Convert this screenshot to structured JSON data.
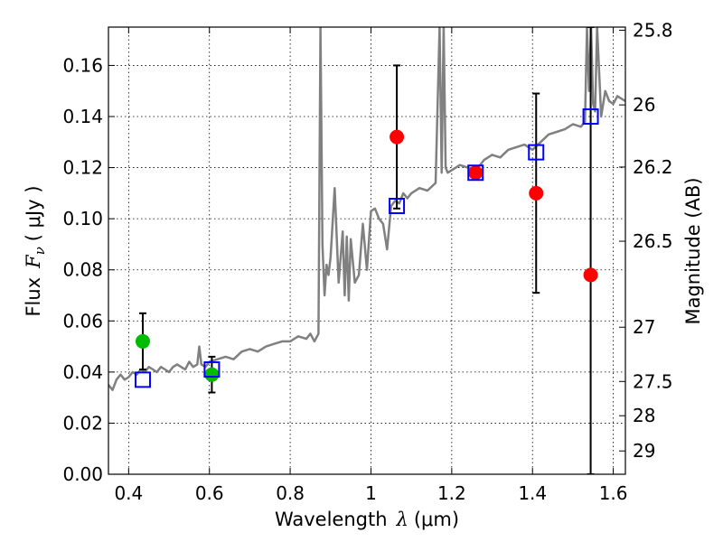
{
  "chart_data": {
    "type": "scatter",
    "title": "",
    "xlabel": {
      "prefix": "Wavelength",
      "symbol": "λ",
      "unit": "(μm)"
    },
    "ylabel": {
      "prefix": "Flux",
      "symbol": "F",
      "subscript": "ν",
      "unit": "( μJy )"
    },
    "y2label": "Magnitude (AB)",
    "xlim": [
      0.35,
      1.63
    ],
    "ylim": [
      0.0,
      0.175
    ],
    "grid": true,
    "x_ticks": [
      {
        "v": 0.4,
        "label": "0.4"
      },
      {
        "v": 0.6,
        "label": "0.6"
      },
      {
        "v": 0.8,
        "label": "0.8"
      },
      {
        "v": 1.0,
        "label": "1"
      },
      {
        "v": 1.2,
        "label": "1.2"
      },
      {
        "v": 1.4,
        "label": "1.4"
      },
      {
        "v": 1.6,
        "label": "1.6"
      }
    ],
    "y_ticks": [
      {
        "v": 0.0,
        "label": "0.00"
      },
      {
        "v": 0.02,
        "label": "0.02"
      },
      {
        "v": 0.04,
        "label": "0.04"
      },
      {
        "v": 0.06,
        "label": "0.06"
      },
      {
        "v": 0.08,
        "label": "0.08"
      },
      {
        "v": 0.1,
        "label": "0.10"
      },
      {
        "v": 0.12,
        "label": "0.12"
      },
      {
        "v": 0.14,
        "label": "0.14"
      },
      {
        "v": 0.16,
        "label": "0.16"
      }
    ],
    "mag_ticks": [
      {
        "mag": 25.8,
        "label": "25.8"
      },
      {
        "mag": 26,
        "label": "26"
      },
      {
        "mag": 26.2,
        "label": "26.2"
      },
      {
        "mag": 26.5,
        "label": "26.5"
      },
      {
        "mag": 27,
        "label": "27"
      },
      {
        "mag": 27.5,
        "label": "27.5"
      },
      {
        "mag": 28,
        "label": "28"
      },
      {
        "mag": 29,
        "label": "29"
      }
    ],
    "sed_model": {
      "color": "#808080",
      "x": [
        0.35,
        0.36,
        0.37,
        0.38,
        0.39,
        0.4,
        0.41,
        0.42,
        0.43,
        0.44,
        0.45,
        0.46,
        0.47,
        0.48,
        0.49,
        0.5,
        0.51,
        0.52,
        0.53,
        0.54,
        0.55,
        0.56,
        0.57,
        0.575,
        0.58,
        0.59,
        0.6,
        0.62,
        0.64,
        0.66,
        0.68,
        0.7,
        0.72,
        0.74,
        0.76,
        0.78,
        0.8,
        0.82,
        0.84,
        0.85,
        0.86,
        0.87,
        0.875,
        0.88,
        0.885,
        0.89,
        0.895,
        0.9,
        0.91,
        0.92,
        0.93,
        0.935,
        0.94,
        0.945,
        0.95,
        0.96,
        0.97,
        0.98,
        0.99,
        1.0,
        1.01,
        1.02,
        1.03,
        1.04,
        1.05,
        1.06,
        1.07,
        1.08,
        1.09,
        1.1,
        1.12,
        1.14,
        1.16,
        1.17,
        1.175,
        1.18,
        1.185,
        1.19,
        1.2,
        1.22,
        1.24,
        1.26,
        1.28,
        1.3,
        1.32,
        1.34,
        1.36,
        1.38,
        1.4,
        1.42,
        1.44,
        1.46,
        1.48,
        1.5,
        1.52,
        1.53,
        1.535,
        1.54,
        1.545,
        1.55,
        1.555,
        1.56,
        1.57,
        1.58,
        1.59,
        1.6,
        1.61,
        1.62,
        1.63
      ],
      "y": [
        0.035,
        0.033,
        0.037,
        0.039,
        0.037,
        0.038,
        0.04,
        0.039,
        0.041,
        0.04,
        0.042,
        0.041,
        0.04,
        0.042,
        0.041,
        0.04,
        0.042,
        0.043,
        0.042,
        0.041,
        0.044,
        0.042,
        0.043,
        0.05,
        0.043,
        0.042,
        0.044,
        0.045,
        0.046,
        0.045,
        0.048,
        0.049,
        0.048,
        0.05,
        0.051,
        0.052,
        0.052,
        0.054,
        0.053,
        0.055,
        0.052,
        0.055,
        0.175,
        0.09,
        0.07,
        0.082,
        0.078,
        0.085,
        0.112,
        0.075,
        0.095,
        0.07,
        0.093,
        0.068,
        0.092,
        0.075,
        0.078,
        0.098,
        0.08,
        0.103,
        0.104,
        0.1,
        0.098,
        0.088,
        0.105,
        0.107,
        0.106,
        0.11,
        0.108,
        0.11,
        0.112,
        0.111,
        0.114,
        0.175,
        0.118,
        0.175,
        0.12,
        0.118,
        0.119,
        0.121,
        0.12,
        0.119,
        0.123,
        0.125,
        0.124,
        0.127,
        0.128,
        0.129,
        0.127,
        0.13,
        0.133,
        0.134,
        0.135,
        0.137,
        0.136,
        0.138,
        0.175,
        0.15,
        0.175,
        0.145,
        0.142,
        0.175,
        0.14,
        0.15,
        0.146,
        0.145,
        0.148,
        0.147,
        0.146
      ]
    },
    "model_photometry": {
      "color": "#0000ff",
      "marker": "open-square",
      "points": [
        {
          "x": 0.435,
          "y": 0.037
        },
        {
          "x": 0.606,
          "y": 0.041
        },
        {
          "x": 1.064,
          "y": 0.105
        },
        {
          "x": 1.259,
          "y": 0.118
        },
        {
          "x": 1.409,
          "y": 0.126
        },
        {
          "x": 1.544,
          "y": 0.14
        }
      ]
    },
    "observed_optical": {
      "color": "#00bb00",
      "marker": "filled-circle",
      "points": [
        {
          "x": 0.435,
          "y": 0.052,
          "ylo": 0.041,
          "yhi": 0.063
        },
        {
          "x": 0.606,
          "y": 0.039,
          "ylo": 0.032,
          "yhi": 0.046
        }
      ]
    },
    "observed_nir": {
      "color": "#ff0000",
      "marker": "filled-circle",
      "points": [
        {
          "x": 1.064,
          "y": 0.132,
          "ylo": 0.104,
          "yhi": 0.16
        },
        {
          "x": 1.259,
          "y": 0.118,
          "ylo": 0.118,
          "yhi": 0.118
        },
        {
          "x": 1.409,
          "y": 0.11,
          "ylo": 0.071,
          "yhi": 0.149
        },
        {
          "x": 1.544,
          "y": 0.078,
          "ylo": 0.0,
          "yhi": 0.175
        }
      ]
    }
  }
}
